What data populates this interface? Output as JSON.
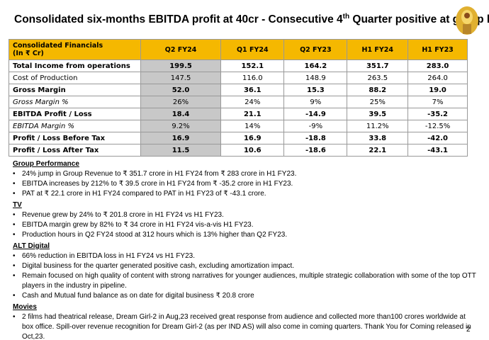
{
  "header": {
    "title_before": "Consolidated six-months EBITDA profit at 40cr - Consecutive 4",
    "title_sup": "th",
    "title_after": "Quarter positive at group level"
  },
  "table": {
    "header": [
      [
        "Consolidated Financials",
        "(In ₹ Cr)"
      ],
      "Q2 FY24",
      "Q1 FY24",
      "Q2 FY23",
      "H1 FY24",
      "H1 FY23"
    ],
    "rows": [
      [
        "Total Income from operations",
        "199.5",
        "152.1",
        "164.2",
        "351.7",
        "283.0"
      ],
      [
        "Cost of Production",
        "147.5",
        "116.0",
        "148.9",
        "263.5",
        "264.0"
      ],
      [
        "Gross Margin",
        "52.0",
        "36.1",
        "15.3",
        "88.2",
        "19.0"
      ],
      [
        "Gross Margin %",
        "26%",
        "24%",
        "9%",
        "25%",
        "7%"
      ],
      [
        "EBITDA Profit / Loss",
        "18.4",
        "21.1",
        "-14.9",
        "39.5",
        "-35.2"
      ],
      [
        "EBITDA Margin %",
        "9.2%",
        "14%",
        "-9%",
        "11.2%",
        "-12.5%"
      ],
      [
        "Profit / Loss Before Tax",
        "16.9",
        "16.9",
        "-18.8",
        "33.8",
        "-42.0"
      ],
      [
        "Profit / Loss After Tax",
        "11.5",
        "10.6",
        "-18.6",
        "22.1",
        "-43.1"
      ]
    ]
  },
  "sections": [
    {
      "heading": "Group Performance",
      "bullets": [
        "24% jump in Group Revenue to ₹ 351.7 crore in H1 FY24 from ₹ 283 crore in H1 FY23.",
        "EBITDA increases by 212% to ₹ 39.5 crore in H1 FY24 from ₹ -35.2 crore in H1 FY23.",
        "PAT at ₹ 22.1 crore in H1 FY24 compared to PAT in H1 FY23 of ₹ -43.1 crore."
      ]
    },
    {
      "heading": "TV",
      "bullets": [
        "Revenue grew by 24% to ₹ 201.8 crore in H1 FY24 vs H1 FY23.",
        "EBITDA margin grew by 82% to ₹ 34 crore in H1 FY24 vis-a-vis H1 FY23.",
        "Production hours in Q2 FY24 stood at 312 hours which is 13% higher than Q2 FY23."
      ]
    },
    {
      "heading": "ALT Digital",
      "bullets": [
        "66% reduction in EBITDA loss in H1 FY24 vs H1 FY23.",
        "Digital business for the quarter generated positive cash, excluding amortization impact.",
        "Remain focused on high quality of content with strong narratives for younger audiences, multiple strategic collaboration with some of the top OTT players in the industry in pipeline.",
        "Cash and Mutual fund balance as on date for digital business ₹ 20.8 crore"
      ]
    },
    {
      "heading": "Movies",
      "bullets": [
        "2 films had theatrical release, Dream Girl-2 in Aug,23 received great response from audience and collected more than100 crores worldwide at box office. Spill-over revenue recognition for Dream Girl-2 (as per IND AS) will also come in coming quarters. Thank You for Coming released in Oct,23."
      ]
    }
  ],
  "page_number": "2"
}
